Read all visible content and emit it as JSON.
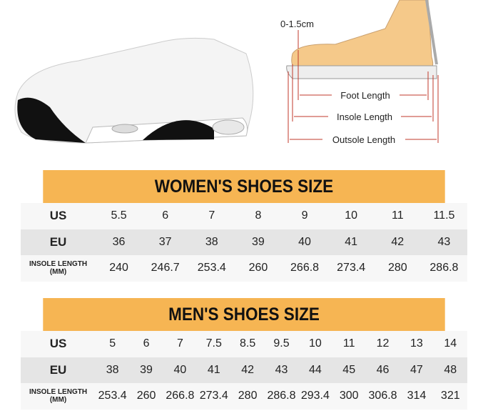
{
  "diagram": {
    "tolerance": "0-1.5cm",
    "foot_length": "Foot Length",
    "insole_length": "Insole Length",
    "outsole_length": "Outsole Length"
  },
  "colors": {
    "header": "#f6b553",
    "row_light": "#f7f7f7",
    "row_dark": "#e5e5e5",
    "measure_line": "#c0392b"
  },
  "women": {
    "title": "WOMEN'S SHOES SIZE",
    "row_labels": {
      "us": "US",
      "eu": "EU",
      "insole": "INSOLE LENGTH (MM)"
    },
    "us": [
      "5.5",
      "6",
      "7",
      "8",
      "9",
      "10",
      "11",
      "11.5"
    ],
    "eu": [
      "36",
      "37",
      "38",
      "39",
      "40",
      "41",
      "42",
      "43"
    ],
    "insole": [
      "240",
      "246.7",
      "253.4",
      "260",
      "266.8",
      "273.4",
      "280",
      "286.8"
    ]
  },
  "men": {
    "title": "MEN'S SHOES SIZE",
    "row_labels": {
      "us": "US",
      "eu": "EU",
      "insole": "INSOLE LENGTH (MM)"
    },
    "us": [
      "5",
      "6",
      "7",
      "7.5",
      "8.5",
      "9.5",
      "10",
      "11",
      "12",
      "13",
      "14"
    ],
    "eu": [
      "38",
      "39",
      "40",
      "41",
      "42",
      "43",
      "44",
      "45",
      "46",
      "47",
      "48"
    ],
    "insole": [
      "253.4",
      "260",
      "266.8",
      "273.4",
      "280",
      "286.8",
      "293.4",
      "300",
      "306.8",
      "314",
      "321"
    ]
  }
}
